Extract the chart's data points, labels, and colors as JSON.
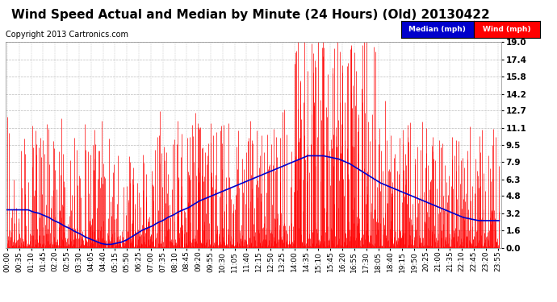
{
  "title": "Wind Speed Actual and Median by Minute (24 Hours) (Old) 20130422",
  "copyright": "Copyright 2013 Cartronics.com",
  "ylabel_right_values": [
    0.0,
    1.6,
    3.2,
    4.8,
    6.3,
    7.9,
    9.5,
    11.1,
    12.7,
    14.2,
    15.8,
    17.4,
    19.0
  ],
  "ylim": [
    0.0,
    19.0
  ],
  "background_color": "#ffffff",
  "plot_bg_color": "#ffffff",
  "grid_color": "#bbbbbb",
  "wind_color": "#ff0000",
  "median_color": "#0000cc",
  "legend_median_bg": "#0000cc",
  "legend_wind_bg": "#ff0000",
  "title_fontsize": 11,
  "copyright_fontsize": 7,
  "tick_label_fontsize": 6.5,
  "ytick_fontsize": 7.5,
  "total_minutes": 1440,
  "x_tick_interval": 35,
  "seed": 42,
  "median_pattern": [
    3.5,
    3.5,
    3.5,
    3.5,
    3.5,
    3.3,
    3.2,
    3.0,
    2.8,
    2.5,
    2.3,
    2.0,
    1.8,
    1.5,
    1.3,
    1.0,
    0.8,
    0.6,
    0.4,
    0.3,
    0.3,
    0.4,
    0.5,
    0.7,
    1.0,
    1.3,
    1.6,
    1.8,
    2.0,
    2.3,
    2.5,
    2.8,
    3.0,
    3.3,
    3.5,
    3.7,
    4.0,
    4.3,
    4.5,
    4.7,
    4.9,
    5.1,
    5.3,
    5.5,
    5.7,
    5.9,
    6.1,
    6.3,
    6.5,
    6.7,
    6.9,
    7.1,
    7.3,
    7.5,
    7.7,
    7.9,
    8.1,
    8.3,
    8.5,
    8.5,
    8.5,
    8.5,
    8.4,
    8.3,
    8.2,
    8.0,
    7.8,
    7.5,
    7.2,
    6.9,
    6.6,
    6.3,
    6.0,
    5.8,
    5.6,
    5.4,
    5.2,
    5.0,
    4.8,
    4.6,
    4.4,
    4.2,
    4.0,
    3.8,
    3.6,
    3.4,
    3.2,
    3.0,
    2.8,
    2.7,
    2.6,
    2.5,
    2.5,
    2.5,
    2.5,
    2.5
  ]
}
